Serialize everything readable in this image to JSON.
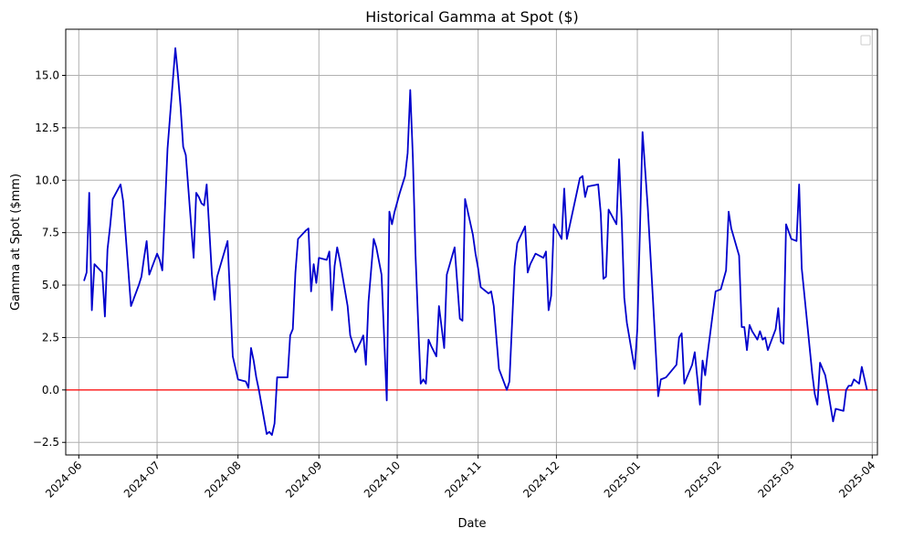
{
  "chart_data": {
    "type": "line",
    "title": "Historical Gamma at Spot ($)",
    "xlabel": "Date",
    "ylabel": "Gamma at Spot ($mm)",
    "x_range": [
      "2024-05-27",
      "2025-04-03"
    ],
    "ylim": [
      -3.1,
      17.2
    ],
    "y_ticks": [
      -2.5,
      0.0,
      2.5,
      5.0,
      7.5,
      10.0,
      12.5,
      15.0
    ],
    "y_tick_labels": [
      "−2.5",
      "0.0",
      "2.5",
      "5.0",
      "7.5",
      "10.0",
      "12.5",
      "15.0"
    ],
    "x_ticks": [
      "2024-06-01",
      "2024-07-01",
      "2024-08-01",
      "2024-09-01",
      "2024-10-01",
      "2024-11-01",
      "2024-12-01",
      "2025-01-01",
      "2025-02-01",
      "2025-03-01",
      "2025-04-01"
    ],
    "x_tick_labels": [
      "2024-06",
      "2024-07",
      "2024-08",
      "2024-09",
      "2024-10",
      "2024-11",
      "2024-12",
      "2025-01",
      "2025-02",
      "2025-03",
      "2025-04"
    ],
    "grid": true,
    "legend": "top-right (empty)",
    "reference_line": {
      "y": 0,
      "color": "#ff0000"
    },
    "series": [
      {
        "color": "#0000cc",
        "points": [
          [
            "2024-06-03",
            5.2
          ],
          [
            "2024-06-04",
            5.6
          ],
          [
            "2024-06-05",
            9.4
          ],
          [
            "2024-06-06",
            3.8
          ],
          [
            "2024-06-07",
            6.0
          ],
          [
            "2024-06-10",
            5.6
          ],
          [
            "2024-06-11",
            3.5
          ],
          [
            "2024-06-12",
            6.7
          ],
          [
            "2024-06-13",
            7.8
          ],
          [
            "2024-06-14",
            9.1
          ],
          [
            "2024-06-17",
            9.8
          ],
          [
            "2024-06-18",
            9.0
          ],
          [
            "2024-06-21",
            4.0
          ],
          [
            "2024-06-24",
            5.0
          ],
          [
            "2024-06-25",
            5.4
          ],
          [
            "2024-06-26",
            6.3
          ],
          [
            "2024-06-27",
            7.1
          ],
          [
            "2024-06-28",
            5.5
          ],
          [
            "2024-07-01",
            6.5
          ],
          [
            "2024-07-02",
            6.2
          ],
          [
            "2024-07-03",
            5.7
          ],
          [
            "2024-07-05",
            11.5
          ],
          [
            "2024-07-08",
            16.3
          ],
          [
            "2024-07-09",
            15.0
          ],
          [
            "2024-07-10",
            13.5
          ],
          [
            "2024-07-11",
            11.6
          ],
          [
            "2024-07-12",
            11.2
          ],
          [
            "2024-07-15",
            6.3
          ],
          [
            "2024-07-16",
            9.4
          ],
          [
            "2024-07-17",
            9.2
          ],
          [
            "2024-07-18",
            8.9
          ],
          [
            "2024-07-19",
            8.8
          ],
          [
            "2024-07-20",
            9.8
          ],
          [
            "2024-07-22",
            5.5
          ],
          [
            "2024-07-23",
            4.3
          ],
          [
            "2024-07-24",
            5.4
          ],
          [
            "2024-07-28",
            7.1
          ],
          [
            "2024-07-30",
            1.6
          ],
          [
            "2024-08-01",
            0.5
          ],
          [
            "2024-08-04",
            0.4
          ],
          [
            "2024-08-05",
            0.1
          ],
          [
            "2024-08-06",
            2.0
          ],
          [
            "2024-08-07",
            1.4
          ],
          [
            "2024-08-08",
            0.6
          ],
          [
            "2024-08-09",
            0.0
          ],
          [
            "2024-08-12",
            -2.1
          ],
          [
            "2024-08-13",
            -2.0
          ],
          [
            "2024-08-14",
            -2.15
          ],
          [
            "2024-08-15",
            -1.6
          ],
          [
            "2024-08-16",
            0.6
          ],
          [
            "2024-08-19",
            0.6
          ],
          [
            "2024-08-20",
            0.6
          ],
          [
            "2024-08-21",
            2.6
          ],
          [
            "2024-08-22",
            2.9
          ],
          [
            "2024-08-23",
            5.6
          ],
          [
            "2024-08-24",
            7.2
          ],
          [
            "2024-08-27",
            7.6
          ],
          [
            "2024-08-28",
            7.7
          ],
          [
            "2024-08-29",
            4.7
          ],
          [
            "2024-08-30",
            6.0
          ],
          [
            "2024-08-31",
            5.1
          ],
          [
            "2024-09-01",
            6.3
          ],
          [
            "2024-09-04",
            6.2
          ],
          [
            "2024-09-05",
            6.6
          ],
          [
            "2024-09-06",
            3.8
          ],
          [
            "2024-09-07",
            5.9
          ],
          [
            "2024-09-08",
            6.8
          ],
          [
            "2024-09-09",
            6.2
          ],
          [
            "2024-09-12",
            4.0
          ],
          [
            "2024-09-13",
            2.6
          ],
          [
            "2024-09-15",
            1.8
          ],
          [
            "2024-09-17",
            2.3
          ],
          [
            "2024-09-18",
            2.6
          ],
          [
            "2024-09-19",
            1.2
          ],
          [
            "2024-09-20",
            4.2
          ],
          [
            "2024-09-22",
            7.2
          ],
          [
            "2024-09-23",
            6.8
          ],
          [
            "2024-09-25",
            5.5
          ],
          [
            "2024-09-26",
            2.5
          ],
          [
            "2024-09-27",
            -0.5
          ],
          [
            "2024-09-28",
            8.5
          ],
          [
            "2024-09-29",
            7.9
          ],
          [
            "2024-09-30",
            8.5
          ],
          [
            "2024-10-02",
            9.4
          ],
          [
            "2024-10-04",
            10.2
          ],
          [
            "2024-10-05",
            11.3
          ],
          [
            "2024-10-06",
            14.3
          ],
          [
            "2024-10-07",
            11.1
          ],
          [
            "2024-10-08",
            6.5
          ],
          [
            "2024-10-09",
            3.3
          ],
          [
            "2024-10-10",
            0.3
          ],
          [
            "2024-10-11",
            0.5
          ],
          [
            "2024-10-12",
            0.3
          ],
          [
            "2024-10-13",
            2.4
          ],
          [
            "2024-10-14",
            2.1
          ],
          [
            "2024-10-16",
            1.6
          ],
          [
            "2024-10-17",
            4.0
          ],
          [
            "2024-10-19",
            2.0
          ],
          [
            "2024-10-20",
            5.5
          ],
          [
            "2024-10-23",
            6.8
          ],
          [
            "2024-10-25",
            3.4
          ],
          [
            "2024-10-26",
            3.3
          ],
          [
            "2024-10-27",
            9.1
          ],
          [
            "2024-10-30",
            7.4
          ],
          [
            "2024-10-31",
            6.5
          ],
          [
            "2024-11-01",
            5.8
          ],
          [
            "2024-11-02",
            4.9
          ],
          [
            "2024-11-05",
            4.6
          ],
          [
            "2024-11-06",
            4.7
          ],
          [
            "2024-11-07",
            4.0
          ],
          [
            "2024-11-09",
            1.0
          ],
          [
            "2024-11-12",
            0.0
          ],
          [
            "2024-11-13",
            0.4
          ],
          [
            "2024-11-15",
            5.9
          ],
          [
            "2024-11-16",
            7.0
          ],
          [
            "2024-11-19",
            7.8
          ],
          [
            "2024-11-20",
            5.6
          ],
          [
            "2024-11-21",
            6.0
          ],
          [
            "2024-11-23",
            6.5
          ],
          [
            "2024-11-26",
            6.3
          ],
          [
            "2024-11-27",
            6.6
          ],
          [
            "2024-11-28",
            3.8
          ],
          [
            "2024-11-29",
            4.5
          ],
          [
            "2024-11-30",
            7.9
          ],
          [
            "2024-12-03",
            7.2
          ],
          [
            "2024-12-04",
            9.6
          ],
          [
            "2024-12-05",
            7.2
          ],
          [
            "2024-12-10",
            10.1
          ],
          [
            "2024-12-11",
            10.2
          ],
          [
            "2024-12-12",
            9.2
          ],
          [
            "2024-12-13",
            9.7
          ],
          [
            "2024-12-17",
            9.8
          ],
          [
            "2024-12-18",
            8.4
          ],
          [
            "2024-12-19",
            5.3
          ],
          [
            "2024-12-20",
            5.4
          ],
          [
            "2024-12-21",
            8.6
          ],
          [
            "2024-12-24",
            7.9
          ],
          [
            "2024-12-25",
            11.0
          ],
          [
            "2024-12-26",
            8.2
          ],
          [
            "2024-12-27",
            4.4
          ],
          [
            "2024-12-28",
            3.2
          ],
          [
            "2024-12-31",
            1.0
          ],
          [
            "2025-01-01",
            2.9
          ],
          [
            "2025-01-03",
            12.3
          ],
          [
            "2025-01-05",
            8.7
          ],
          [
            "2025-01-07",
            4.3
          ],
          [
            "2025-01-09",
            -0.3
          ],
          [
            "2025-01-10",
            0.5
          ],
          [
            "2025-01-12",
            0.6
          ],
          [
            "2025-01-16",
            1.2
          ],
          [
            "2025-01-17",
            2.5
          ],
          [
            "2025-01-18",
            2.7
          ],
          [
            "2025-01-19",
            0.3
          ],
          [
            "2025-01-22",
            1.2
          ],
          [
            "2025-01-23",
            1.8
          ],
          [
            "2025-01-25",
            -0.7
          ],
          [
            "2025-01-26",
            1.4
          ],
          [
            "2025-01-27",
            0.7
          ],
          [
            "2025-01-28",
            1.8
          ],
          [
            "2025-01-31",
            4.7
          ],
          [
            "2025-02-02",
            4.8
          ],
          [
            "2025-02-04",
            5.7
          ],
          [
            "2025-02-05",
            8.5
          ],
          [
            "2025-02-06",
            7.7
          ],
          [
            "2025-02-09",
            6.4
          ],
          [
            "2025-02-10",
            3.0
          ],
          [
            "2025-02-11",
            3.0
          ],
          [
            "2025-02-12",
            1.9
          ],
          [
            "2025-02-13",
            3.1
          ],
          [
            "2025-02-14",
            2.8
          ],
          [
            "2025-02-16",
            2.4
          ],
          [
            "2025-02-17",
            2.8
          ],
          [
            "2025-02-18",
            2.4
          ],
          [
            "2025-02-19",
            2.5
          ],
          [
            "2025-02-20",
            1.9
          ],
          [
            "2025-02-23",
            2.9
          ],
          [
            "2025-02-24",
            3.9
          ],
          [
            "2025-02-25",
            2.3
          ],
          [
            "2025-02-26",
            2.2
          ],
          [
            "2025-02-27",
            7.9
          ],
          [
            "2025-03-01",
            7.2
          ],
          [
            "2025-03-03",
            7.1
          ],
          [
            "2025-03-04",
            9.8
          ],
          [
            "2025-03-05",
            5.8
          ],
          [
            "2025-03-09",
            0.8
          ],
          [
            "2025-03-10",
            -0.2
          ],
          [
            "2025-03-11",
            -0.7
          ],
          [
            "2025-03-12",
            1.3
          ],
          [
            "2025-03-14",
            0.7
          ],
          [
            "2025-03-15",
            0.0
          ],
          [
            "2025-03-17",
            -1.5
          ],
          [
            "2025-03-18",
            -0.9
          ],
          [
            "2025-03-21",
            -1.0
          ],
          [
            "2025-03-22",
            0.0
          ],
          [
            "2025-03-23",
            0.2
          ],
          [
            "2025-03-24",
            0.2
          ],
          [
            "2025-03-25",
            0.5
          ],
          [
            "2025-03-27",
            0.3
          ],
          [
            "2025-03-28",
            1.1
          ],
          [
            "2025-03-30",
            0.0
          ]
        ]
      }
    ]
  }
}
